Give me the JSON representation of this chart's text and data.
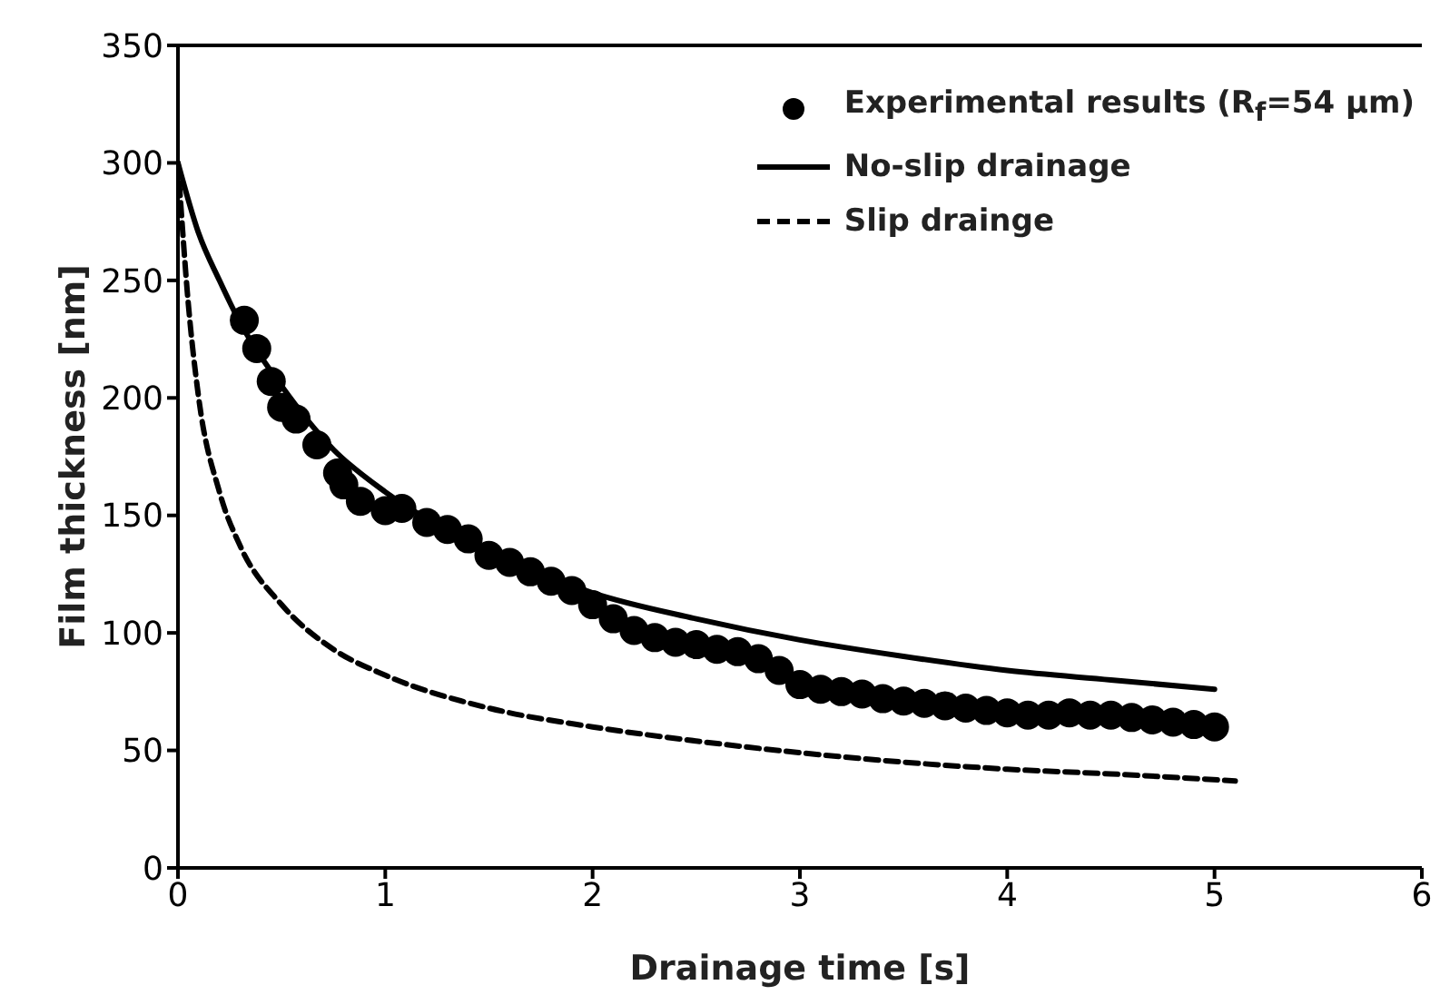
{
  "chart_data": {
    "type": "line",
    "xlabel": "Drainage time [s]",
    "ylabel": "Film thickness [nm]",
    "xlim": [
      0,
      6
    ],
    "xticks": [
      0,
      1,
      2,
      3,
      4,
      5,
      6
    ],
    "ylim": [
      0,
      350
    ],
    "yticks": [
      0,
      50,
      100,
      150,
      200,
      250,
      300,
      350
    ],
    "grid": false,
    "legend": "top right",
    "series": [
      {
        "name": "Experimental results (R$_{f}$=54 μm)",
        "type": "scatter",
        "marker": "circle",
        "color": "#000000",
        "x": [
          0.32,
          0.38,
          0.45,
          0.5,
          0.57,
          0.67,
          0.77,
          0.8,
          0.88,
          1.0,
          1.08,
          1.2,
          1.3,
          1.4,
          1.5,
          1.6,
          1.7,
          1.8,
          1.9,
          2.0,
          2.1,
          2.2,
          2.3,
          2.4,
          2.5,
          2.6,
          2.7,
          2.8,
          2.9,
          3.0,
          3.1,
          3.2,
          3.3,
          3.4,
          3.5,
          3.6,
          3.7,
          3.8,
          3.9,
          4.0,
          4.1,
          4.2,
          4.3,
          4.4,
          4.5,
          4.6,
          4.7,
          4.8,
          4.9,
          5.0
        ],
        "values": [
          233,
          221,
          207,
          196,
          191,
          180,
          168,
          163,
          156,
          152,
          153,
          147,
          144,
          140,
          133,
          130,
          126,
          122,
          118,
          112,
          106,
          101,
          98,
          96,
          95,
          93,
          92,
          89,
          84,
          78,
          76,
          75,
          74,
          72,
          71,
          70,
          69,
          68,
          67,
          66,
          65,
          65,
          66,
          65,
          65,
          64,
          63,
          62,
          61,
          60
        ]
      },
      {
        "name": "No-slip drainage",
        "line_style": "solid",
        "marker": "none",
        "color": "#000000",
        "x": [
          0,
          0.1,
          0.2,
          0.3,
          0.5,
          0.75,
          1,
          1.5,
          2,
          2.5,
          3,
          3.5,
          4,
          4.5,
          5
        ],
        "values": [
          300,
          270,
          250,
          232,
          205,
          178,
          160,
          135,
          117,
          106,
          97,
          90,
          84,
          80,
          76
        ]
      },
      {
        "name": "Slip drainge",
        "line_style": "dashed",
        "marker": "none",
        "color": "#000000",
        "x": [
          0,
          0.05,
          0.1,
          0.2,
          0.3,
          0.5,
          0.75,
          1,
          1.5,
          2,
          2.5,
          3,
          3.5,
          4,
          4.5,
          5.1
        ],
        "values": [
          300,
          240,
          200,
          160,
          137,
          112,
          93,
          82,
          68,
          60,
          54,
          49,
          45,
          42,
          40,
          37
        ]
      }
    ]
  }
}
